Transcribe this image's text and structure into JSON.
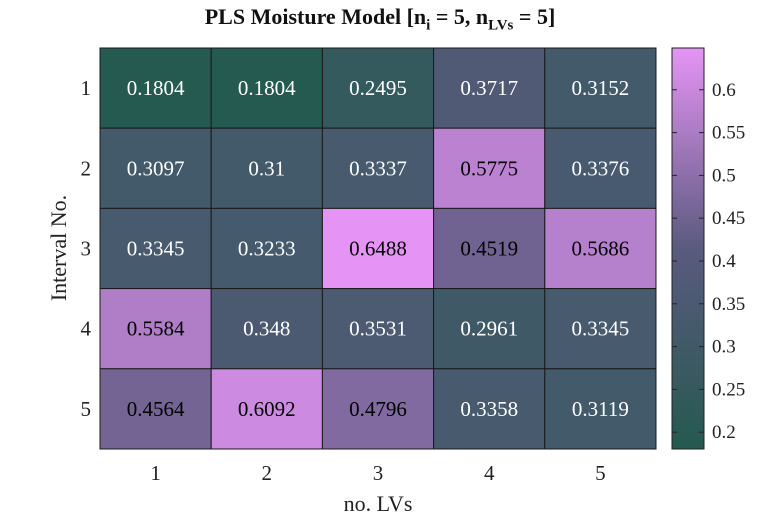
{
  "chart_data": {
    "type": "heatmap",
    "title_main": "PLS Moisture Model [n",
    "title_sub1": "i",
    "title_mid": " = 5, n",
    "title_sub2": "LVs",
    "title_end": " = 5]",
    "xlabel": "no. LVs",
    "ylabel": "Interval No.",
    "x_categories": [
      "1",
      "2",
      "3",
      "4",
      "5"
    ],
    "y_categories": [
      "1",
      "2",
      "3",
      "4",
      "5"
    ],
    "values": [
      [
        0.1804,
        0.1804,
        0.2495,
        0.3717,
        0.3152
      ],
      [
        0.3097,
        0.31,
        0.3337,
        0.5775,
        0.3376
      ],
      [
        0.3345,
        0.3233,
        0.6488,
        0.4519,
        0.5686
      ],
      [
        0.5584,
        0.348,
        0.3531,
        0.2961,
        0.3345
      ],
      [
        0.4564,
        0.6092,
        0.4796,
        0.3358,
        0.3119
      ]
    ],
    "value_labels": [
      [
        "0.1804",
        "0.1804",
        "0.2495",
        "0.3717",
        "0.3152"
      ],
      [
        "0.3097",
        "0.31",
        "0.3337",
        "0.5775",
        "0.3376"
      ],
      [
        "0.3345",
        "0.3233",
        "0.6488",
        "0.4519",
        "0.5686"
      ],
      [
        "0.5584",
        "0.348",
        "0.3531",
        "0.2961",
        "0.3345"
      ],
      [
        "0.4564",
        "0.6092",
        "0.4796",
        "0.3358",
        "0.3119"
      ]
    ],
    "colorbar": {
      "range": [
        0.1804,
        0.6488
      ],
      "ticks": [
        0.2,
        0.25,
        0.3,
        0.35,
        0.4,
        0.45,
        0.5,
        0.55,
        0.6
      ],
      "tick_labels": [
        "0.2",
        "0.25",
        "0.3",
        "0.35",
        "0.4",
        "0.45",
        "0.5",
        "0.55",
        "0.6"
      ],
      "color_low": "#245a4f",
      "color_mid": "#5a5a7e",
      "color_high": "#e594f5"
    }
  }
}
